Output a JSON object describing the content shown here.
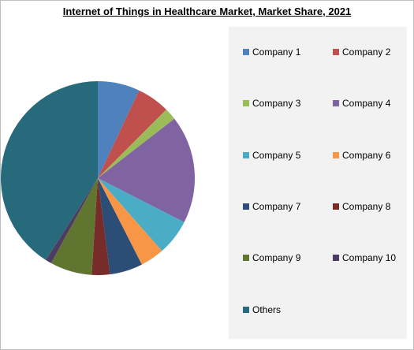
{
  "chart_data": {
    "type": "pie",
    "title": "Internet of Things in Healthcare  Market, Market Share, 2021",
    "legend_position": "right",
    "slices": [
      {
        "name": "Company 1",
        "value": 7.0,
        "color": "#4f81bd"
      },
      {
        "name": "Company 2",
        "value": 5.5,
        "color": "#c0504d"
      },
      {
        "name": "Company 3",
        "value": 2.0,
        "color": "#9bbb59"
      },
      {
        "name": "Company 4",
        "value": 18.0,
        "color": "#8064a2"
      },
      {
        "name": "Company 5",
        "value": 6.0,
        "color": "#4bacc6"
      },
      {
        "name": "Company 6",
        "value": 4.0,
        "color": "#f79646"
      },
      {
        "name": "Company 7",
        "value": 5.5,
        "color": "#2c4d75"
      },
      {
        "name": "Company 8",
        "value": 3.0,
        "color": "#772c2a"
      },
      {
        "name": "Company 9",
        "value": 7.0,
        "color": "#5f7530"
      },
      {
        "name": "Company 10",
        "value": 1.0,
        "color": "#4d3b62"
      },
      {
        "name": "Others",
        "value": 41.0,
        "color": "#276a7c"
      }
    ]
  }
}
